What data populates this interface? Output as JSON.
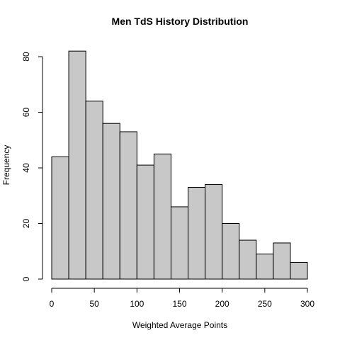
{
  "chart_data": {
    "type": "bar",
    "histogram": true,
    "title": "Men TdS History Distribution",
    "xlabel": "Weighted Average Points",
    "ylabel": "Frequency",
    "bin_edges": [
      0,
      20,
      40,
      60,
      80,
      100,
      120,
      140,
      160,
      180,
      200,
      220,
      240,
      260,
      280,
      300
    ],
    "values": [
      44,
      82,
      64,
      56,
      53,
      41,
      45,
      26,
      33,
      34,
      20,
      14,
      9,
      13,
      6
    ],
    "xlim": [
      0,
      300
    ],
    "ylim": [
      0,
      80
    ],
    "x_ticks": [
      "0",
      "50",
      "100",
      "150",
      "200",
      "250",
      "300"
    ],
    "y_ticks": [
      "0",
      "20",
      "40",
      "60",
      "80"
    ],
    "bar_color": "#c8c8c8",
    "bar_edge_color": "#000000",
    "grid": false,
    "legend": "none"
  }
}
